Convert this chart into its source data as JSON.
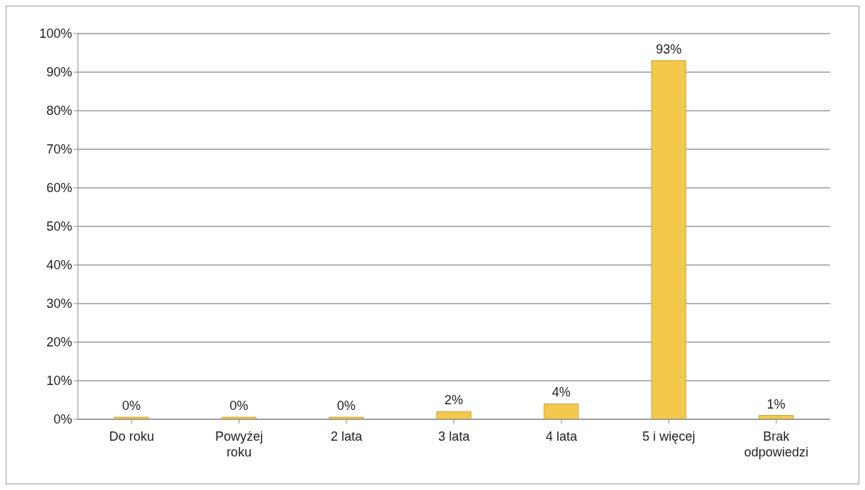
{
  "chart_data": {
    "type": "bar",
    "categories": [
      "Do roku",
      "Powyżej roku",
      "2 lata",
      "3 lata",
      "4 lata",
      "5 i więcej",
      "Brak odpowiedzi"
    ],
    "values": [
      0,
      0,
      0,
      2,
      4,
      93,
      1
    ],
    "color": "#f2c94c",
    "value_labels": [
      "0%",
      "0%",
      "0%",
      "2%",
      "4%",
      "93%",
      "1%"
    ],
    "ylim": [
      0,
      100
    ],
    "yticks": [
      {
        "value": 0,
        "label": "0%"
      },
      {
        "value": 10,
        "label": "10%"
      },
      {
        "value": 20,
        "label": "20%"
      },
      {
        "value": 30,
        "label": "30%"
      },
      {
        "value": 40,
        "label": "40%"
      },
      {
        "value": 50,
        "label": "50%"
      },
      {
        "value": 60,
        "label": "60%"
      },
      {
        "value": 70,
        "label": "70%"
      },
      {
        "value": 80,
        "label": "80%"
      },
      {
        "value": 90,
        "label": "90%"
      },
      {
        "value": 100,
        "label": "100%"
      }
    ],
    "grid": "y"
  }
}
